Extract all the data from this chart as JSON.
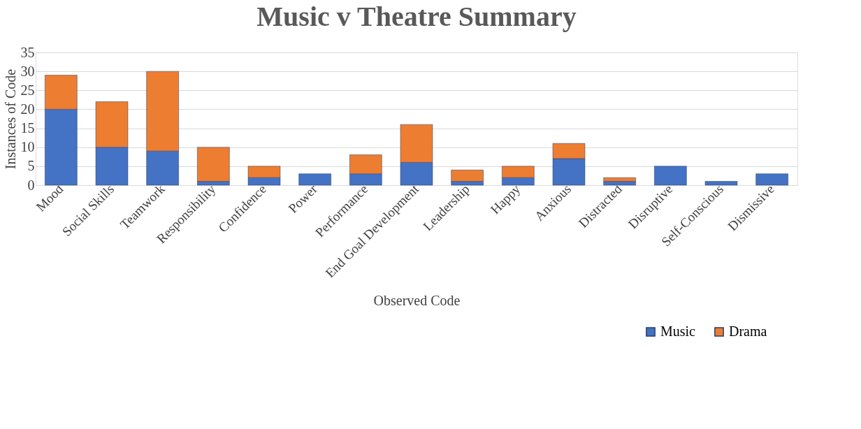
{
  "chart_data": {
    "type": "bar",
    "title": "Music v Theatre Summary",
    "xlabel": "Observed Code",
    "ylabel": "Instances of Code",
    "categories": [
      "Mood",
      "Social Skills",
      "Teamwork",
      "Responsibility",
      "Confidence",
      "Power",
      "Performance",
      "End Goal Development",
      "Leadership",
      "Happy",
      "Anxious",
      "Distracted",
      "Disruptive",
      "Self-Conscious",
      "Dismissive"
    ],
    "series": [
      {
        "name": "Music",
        "color": "#4472c4",
        "values": [
          20,
          10,
          9,
          1,
          2,
          3,
          3,
          6,
          1,
          2,
          7,
          1,
          5,
          1,
          3
        ]
      },
      {
        "name": "Drama",
        "color": "#ed7d31",
        "values": [
          9,
          12,
          21,
          9,
          3,
          null,
          5,
          10,
          3,
          3,
          4,
          1,
          null,
          null,
          null
        ]
      }
    ],
    "stacked": true,
    "ylim": [
      0,
      35
    ],
    "yticks": [
      0,
      5,
      10,
      15,
      20,
      25,
      30,
      35
    ],
    "grid": "y",
    "legend": "bottom right"
  }
}
